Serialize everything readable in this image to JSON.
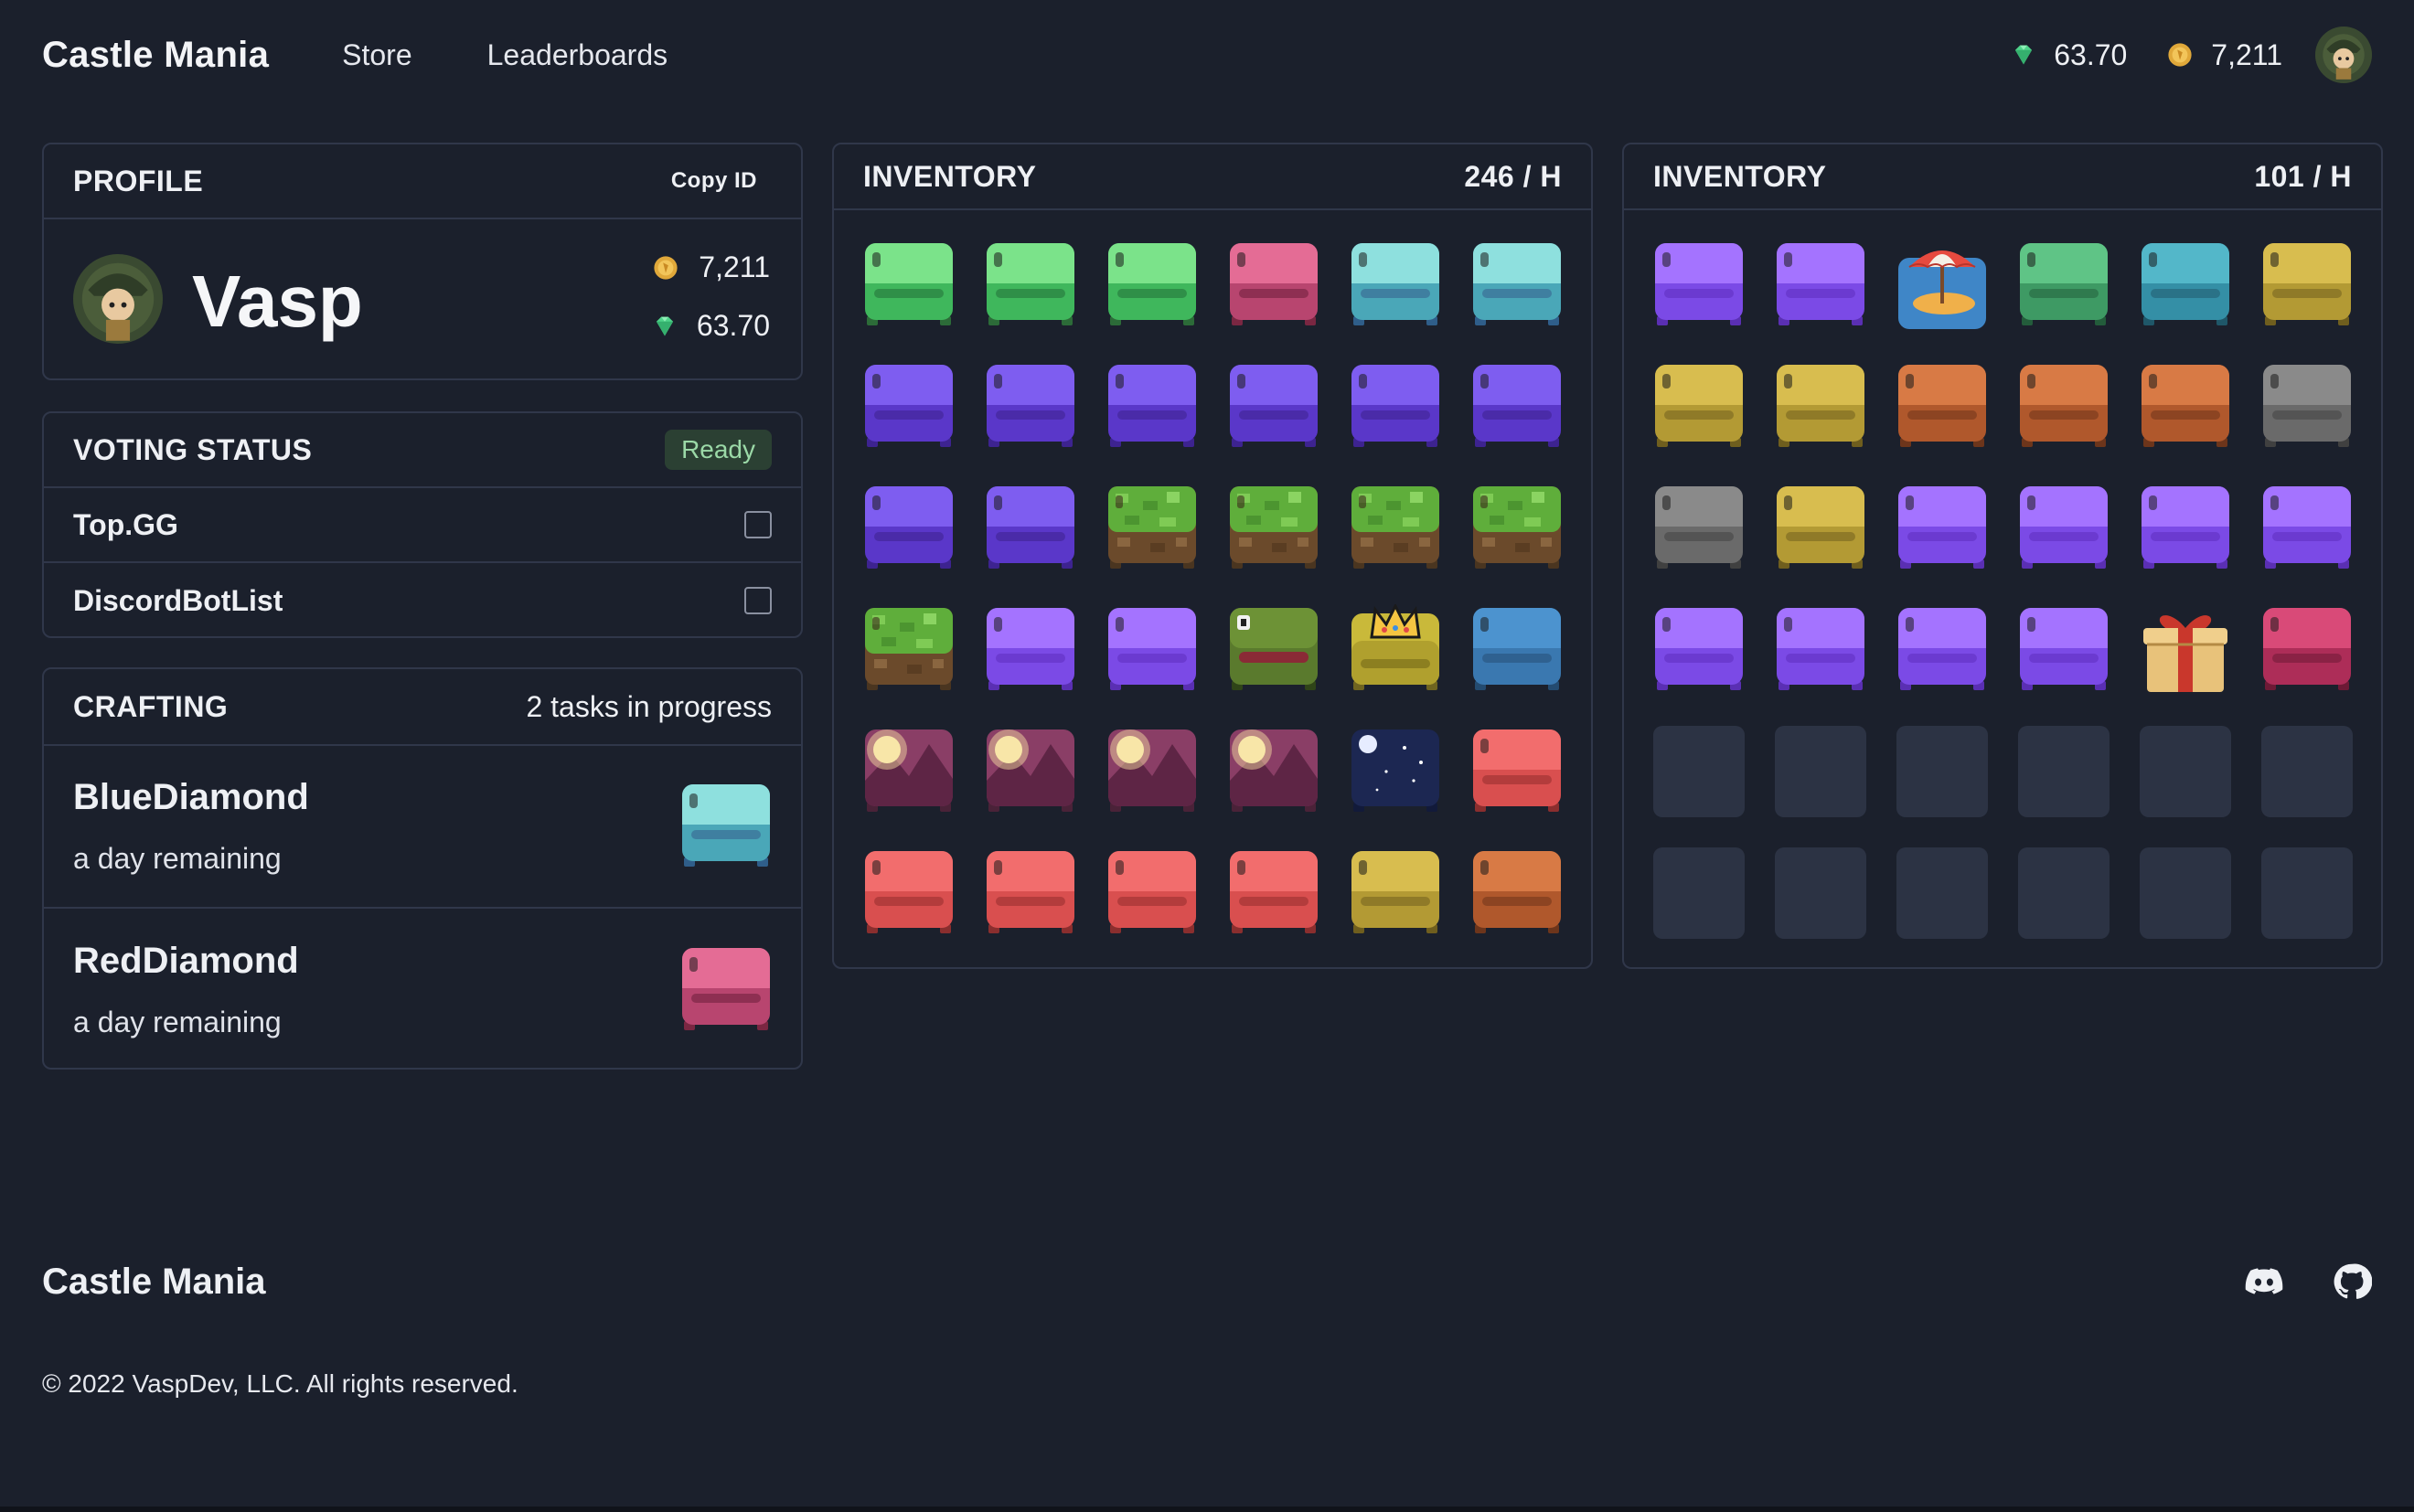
{
  "nav": {
    "brand": "Castle Mania",
    "links": [
      "Store",
      "Leaderboards"
    ],
    "gems": "63.70",
    "coins": "7,211",
    "avatar_icon": "avatar-icon"
  },
  "profile": {
    "title": "PROFILE",
    "copy_id": "Copy ID",
    "name": "Vasp",
    "coins": "7,211",
    "gems": "63.70"
  },
  "voting": {
    "title": "VOTING STATUS",
    "badge": "Ready",
    "sites": [
      "Top.GG",
      "DiscordBotList"
    ]
  },
  "crafting": {
    "title": "CRAFTING",
    "status": "2 tasks in progress",
    "tasks": [
      {
        "name": "BlueDiamond",
        "time": "a day remaining",
        "icon": "chest-cyan"
      },
      {
        "name": "RedDiamond",
        "time": "a day remaining",
        "icon": "chest-pink"
      }
    ]
  },
  "inventory1": {
    "title": "INVENTORY",
    "rate": "246 / H",
    "items": [
      "chest-green",
      "chest-green",
      "chest-green",
      "chest-pink",
      "chest-cyan",
      "chest-cyan",
      "chest-violet",
      "chest-violet",
      "chest-violet",
      "chest-violet",
      "chest-violet",
      "chest-violet",
      "chest-violet",
      "chest-violet",
      "chest-grass",
      "chest-grass",
      "chest-grass",
      "chest-grass",
      "chest-grass",
      "chest-purple",
      "chest-purple",
      "chest-frog",
      "chest-crown",
      "chest-blue",
      "chest-moon",
      "chest-moon",
      "chest-moon",
      "chest-moon",
      "chest-night",
      "chest-sunset",
      "chest-sunset",
      "chest-sunset",
      "chest-sunset",
      "chest-sunset",
      "chest-gold",
      "chest-copper"
    ]
  },
  "inventory2": {
    "title": "INVENTORY",
    "rate": "101 / H",
    "items": [
      "chest-purple",
      "chest-purple",
      "beach-icon",
      "chest-emerald",
      "chest-teal",
      "chest-gold",
      "chest-gold",
      "chest-gold",
      "chest-copper",
      "chest-copper",
      "chest-copper",
      "chest-gray",
      "chest-gray",
      "chest-gold",
      "chest-purple",
      "chest-purple",
      "chest-purple",
      "chest-purple",
      "chest-purple",
      "chest-purple",
      "chest-purple",
      "chest-purple",
      "gift-icon",
      "chest-ruby",
      "empty",
      "empty",
      "empty",
      "empty",
      "empty",
      "empty",
      "empty",
      "empty",
      "empty",
      "empty",
      "empty",
      "empty"
    ]
  },
  "footer": {
    "brand": "Castle Mania",
    "copyright": "© 2022 VaspDev, LLC. All rights reserved.",
    "icons": [
      "discord-icon",
      "github-icon"
    ]
  }
}
